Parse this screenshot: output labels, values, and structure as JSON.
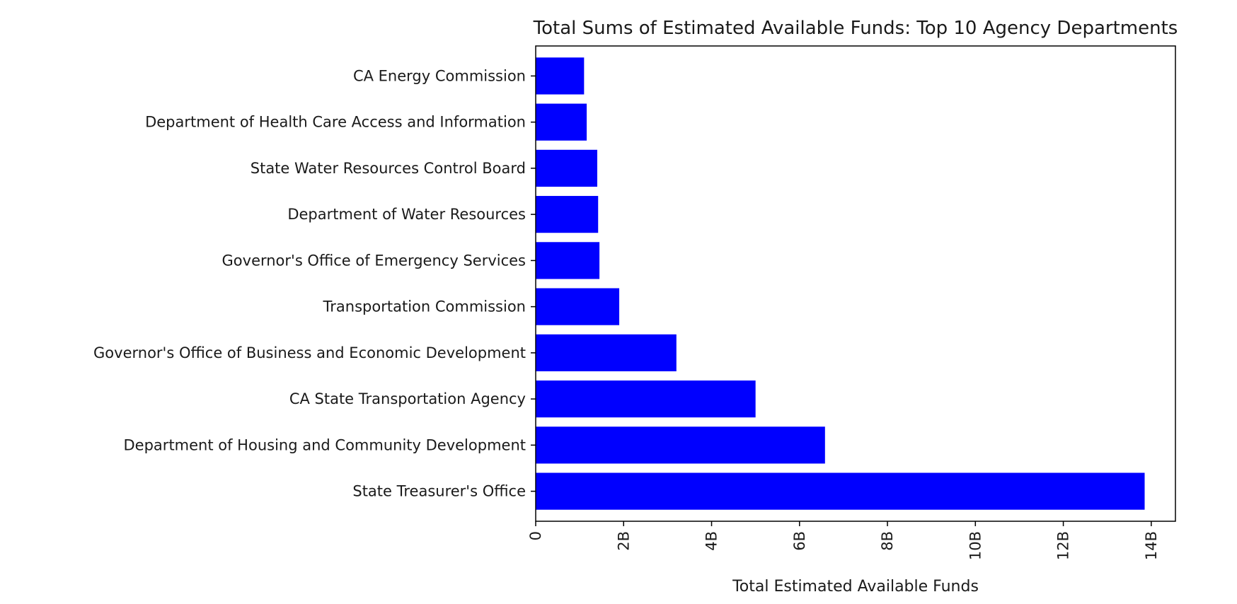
{
  "chart_data": {
    "type": "bar",
    "orientation": "horizontal",
    "title": "Total Sums of Estimated Available Funds: Top 10 Agency Departments",
    "xlabel": "Total Estimated Available Funds",
    "ylabel": "",
    "categories": [
      "State Treasurer's Office",
      "Department of Housing and Community Development",
      "CA State Transportation Agency",
      "Governor's Office of Business and Economic Development",
      "Transportation Commission",
      "Governor's Office of Emergency Services",
      "Department of Water Resources",
      "State Water Resources Control Board",
      "Department of Health Care Access and Information",
      "CA Energy Commission"
    ],
    "values": [
      13850000000,
      6580000000,
      5000000000,
      3200000000,
      1900000000,
      1450000000,
      1420000000,
      1400000000,
      1160000000,
      1100000000
    ],
    "xlim": [
      0,
      14550000000
    ],
    "xticks": [
      0,
      2000000000,
      4000000000,
      6000000000,
      8000000000,
      10000000000,
      12000000000,
      14000000000
    ],
    "xtick_labels": [
      "0",
      "2B",
      "4B",
      "6B",
      "8B",
      "10B",
      "12B",
      "14B"
    ],
    "bar_color": "#0000ff",
    "grid": false,
    "legend": false
  }
}
